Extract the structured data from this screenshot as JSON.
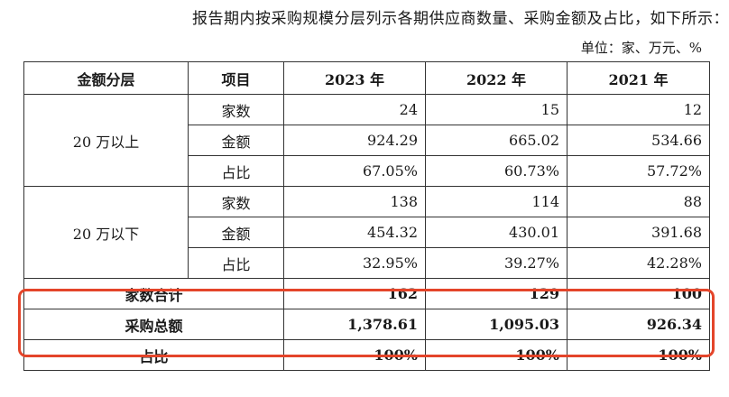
{
  "intro": "报告期内按采购规模分层列示各期供应商数量、采购金额及占比，如下所示：",
  "unit": "单位：家、万元、%",
  "headers": [
    "金额分层",
    "项目",
    "2023 年",
    "2022 年",
    "2021 年"
  ],
  "tiers": [
    {
      "label": "20 万以上",
      "rows": [
        {
          "item": "家数",
          "v2023": "24",
          "v2022": "15",
          "v2021": "12"
        },
        {
          "item": "金额",
          "v2023": "924.29",
          "v2022": "665.02",
          "v2021": "534.66"
        },
        {
          "item": "占比",
          "v2023": "67.05%",
          "v2022": "60.73%",
          "v2021": "57.72%"
        }
      ]
    },
    {
      "label": "20 万以下",
      "rows": [
        {
          "item": "家数",
          "v2023": "138",
          "v2022": "114",
          "v2021": "88"
        },
        {
          "item": "金额",
          "v2023": "454.32",
          "v2022": "430.01",
          "v2021": "391.68"
        },
        {
          "item": "占比",
          "v2023": "32.95%",
          "v2022": "39.27%",
          "v2021": "42.28%"
        }
      ]
    }
  ],
  "totals": [
    {
      "label": "家数合计",
      "v2023": "162",
      "v2022": "129",
      "v2021": "100"
    },
    {
      "label": "采购总额",
      "v2023": "1,378.61",
      "v2022": "1,095.03",
      "v2021": "926.34"
    },
    {
      "label": "占比",
      "v2023": "100%",
      "v2022": "100%",
      "v2021": "100%"
    }
  ],
  "highlight_color": "#e4452a"
}
